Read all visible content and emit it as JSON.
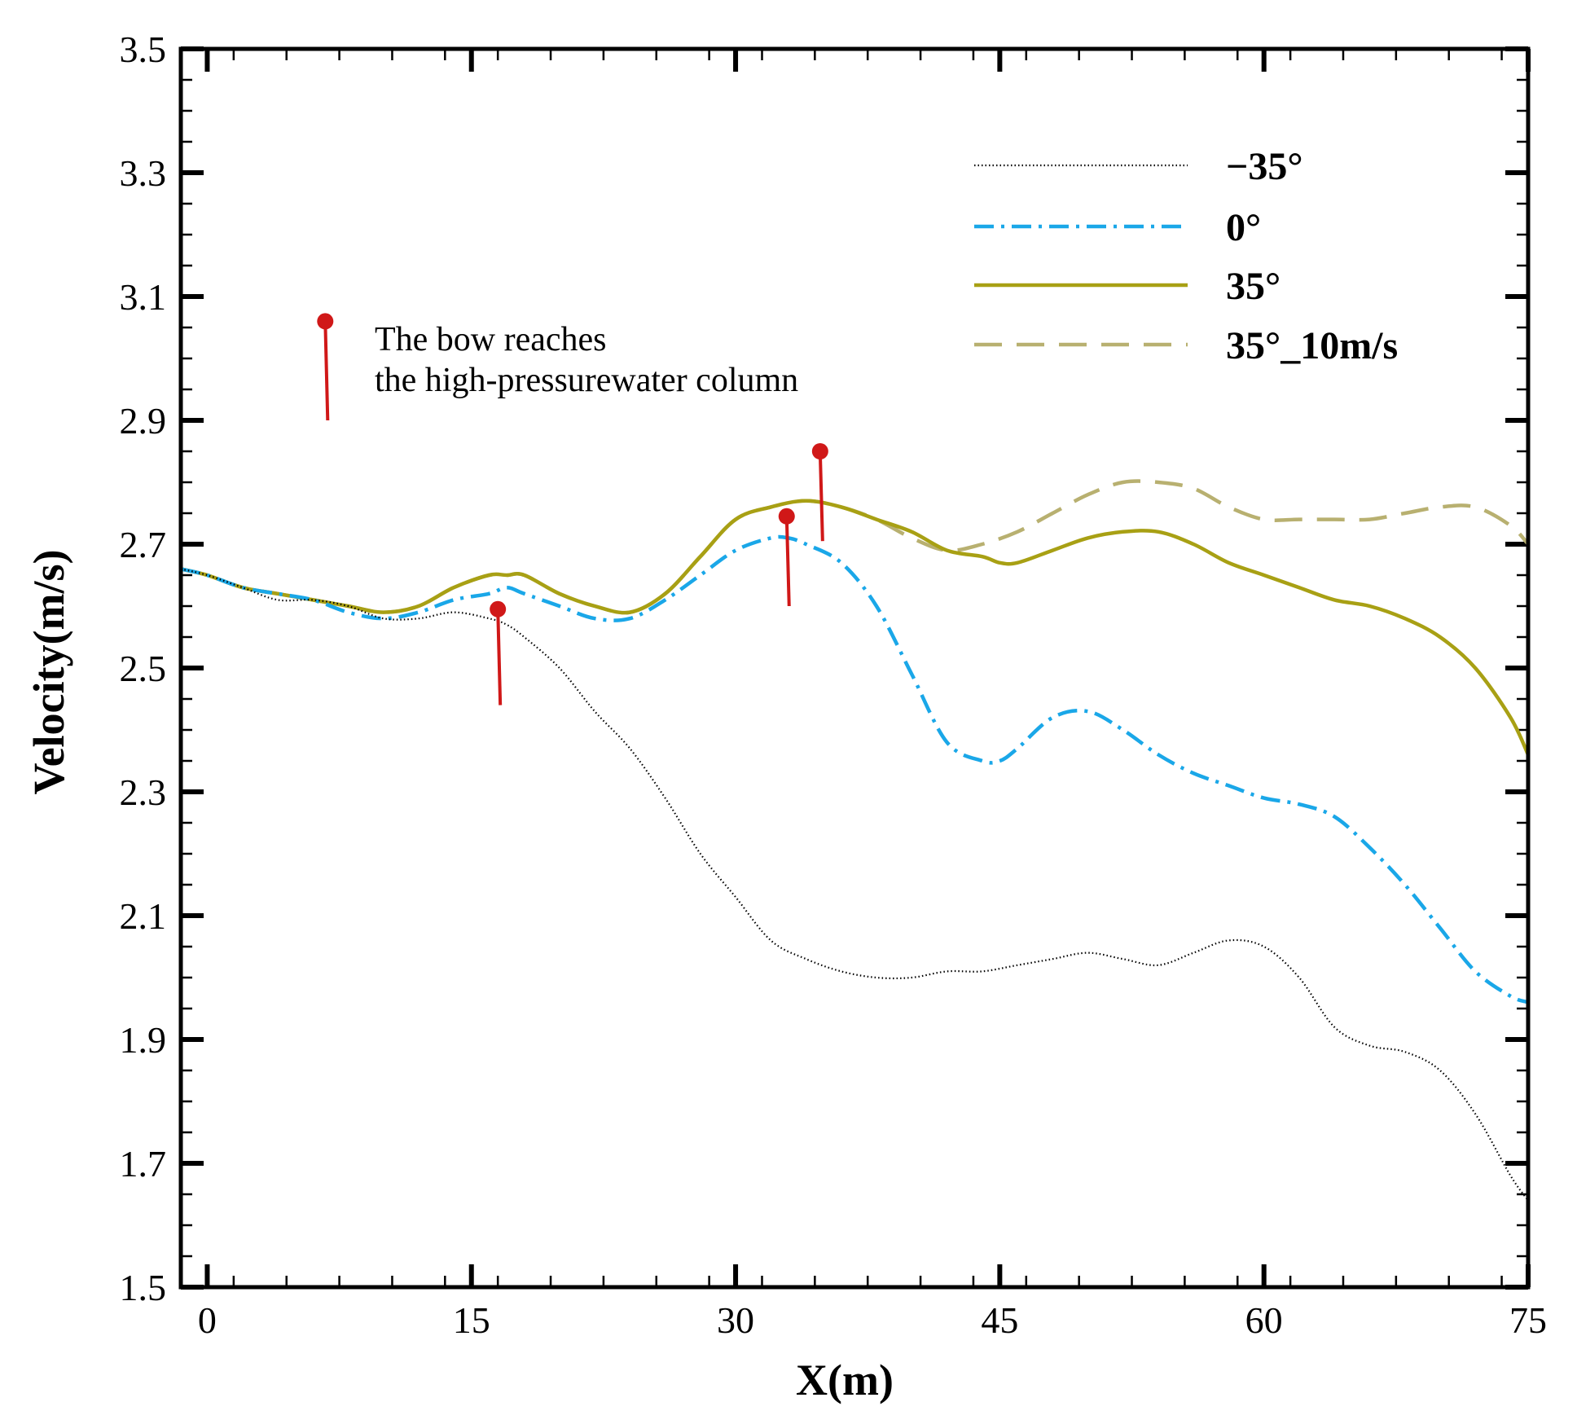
{
  "chart_data": {
    "type": "line",
    "title": "",
    "xlabel": "X(m)",
    "ylabel": "Velocity(m/s)",
    "xlim": [
      -1.5,
      75
    ],
    "ylim": [
      1.5,
      3.5
    ],
    "x_ticks": [
      0,
      15,
      30,
      45,
      60,
      75
    ],
    "y_ticks": [
      1.5,
      1.7,
      1.9,
      2.1,
      2.3,
      2.5,
      2.7,
      2.9,
      3.1,
      3.3,
      3.5
    ],
    "x_tick_labels": [
      "0",
      "15",
      "30",
      "45",
      "60",
      "75"
    ],
    "y_tick_labels": [
      "1.5",
      "1.7",
      "1.9",
      "2.1",
      "2.3",
      "2.5",
      "2.7",
      "2.9",
      "3.1",
      "3.3",
      "3.5"
    ],
    "grid": false,
    "legend_position": "top-right",
    "series": [
      {
        "name": "−35°",
        "color": "#000000",
        "style": "dotted",
        "x": [
          -1.5,
          0,
          2,
          4,
          6,
          8,
          10,
          12,
          14,
          16,
          17,
          18,
          20,
          22,
          24,
          26,
          28,
          30,
          32,
          34,
          36,
          38,
          40,
          42,
          44,
          46,
          48,
          50,
          52,
          54,
          56,
          58,
          60,
          62,
          64,
          66,
          68,
          70,
          72,
          74,
          75
        ],
        "y": [
          2.66,
          2.65,
          2.63,
          2.61,
          2.61,
          2.6,
          2.58,
          2.58,
          2.59,
          2.58,
          2.57,
          2.55,
          2.5,
          2.43,
          2.37,
          2.29,
          2.2,
          2.13,
          2.06,
          2.03,
          2.01,
          2.0,
          2.0,
          2.01,
          2.01,
          2.02,
          2.03,
          2.04,
          2.03,
          2.02,
          2.04,
          2.06,
          2.05,
          2.0,
          1.92,
          1.89,
          1.88,
          1.85,
          1.78,
          1.68,
          1.64
        ]
      },
      {
        "name": "0°",
        "color": "#1aa7e8",
        "style": "dashdot",
        "x": [
          -1.5,
          0,
          2,
          4,
          6,
          8,
          10,
          12,
          14,
          16,
          17,
          18,
          20,
          22,
          24,
          26,
          28,
          30,
          32,
          33,
          34,
          36,
          38,
          40,
          42,
          44,
          45,
          46,
          48,
          50,
          52,
          54,
          56,
          58,
          60,
          62,
          64,
          66,
          68,
          70,
          72,
          74,
          75
        ],
        "y": [
          2.66,
          2.65,
          2.63,
          2.62,
          2.61,
          2.59,
          2.58,
          2.59,
          2.61,
          2.62,
          2.63,
          2.62,
          2.6,
          2.58,
          2.58,
          2.61,
          2.65,
          2.69,
          2.71,
          2.71,
          2.7,
          2.67,
          2.6,
          2.49,
          2.38,
          2.35,
          2.35,
          2.37,
          2.42,
          2.43,
          2.4,
          2.36,
          2.33,
          2.31,
          2.29,
          2.28,
          2.26,
          2.21,
          2.15,
          2.08,
          2.01,
          1.97,
          1.96
        ]
      },
      {
        "name": "35°",
        "color": "#a8a014",
        "style": "solid",
        "x": [
          -1.5,
          0,
          2,
          4,
          6,
          8,
          10,
          12,
          14,
          16,
          17,
          18,
          20,
          22,
          24,
          26,
          28,
          30,
          32,
          34,
          36,
          38,
          40,
          42,
          44,
          45,
          46,
          48,
          50,
          52,
          54,
          56,
          58,
          60,
          62,
          64,
          66,
          68,
          70,
          72,
          74,
          75
        ],
        "y": [
          2.66,
          2.65,
          2.63,
          2.62,
          2.61,
          2.6,
          2.59,
          2.6,
          2.63,
          2.65,
          2.65,
          2.65,
          2.62,
          2.6,
          2.59,
          2.62,
          2.68,
          2.74,
          2.76,
          2.77,
          2.76,
          2.74,
          2.72,
          2.69,
          2.68,
          2.67,
          2.67,
          2.69,
          2.71,
          2.72,
          2.72,
          2.7,
          2.67,
          2.65,
          2.63,
          2.61,
          2.6,
          2.58,
          2.55,
          2.5,
          2.42,
          2.36
        ]
      },
      {
        "name": "35°_10m/s",
        "color": "#b8b070",
        "style": "dashed",
        "x": [
          -1.5,
          0,
          2,
          4,
          6,
          8,
          10,
          12,
          14,
          16,
          17,
          18,
          20,
          22,
          24,
          26,
          28,
          30,
          32,
          34,
          36,
          38,
          40,
          42,
          44,
          46,
          48,
          50,
          52,
          54,
          56,
          58,
          60,
          62,
          64,
          66,
          68,
          70,
          72,
          74,
          75
        ],
        "y": [
          2.66,
          2.65,
          2.63,
          2.62,
          2.61,
          2.6,
          2.59,
          2.6,
          2.63,
          2.65,
          2.65,
          2.65,
          2.62,
          2.6,
          2.59,
          2.62,
          2.68,
          2.74,
          2.76,
          2.77,
          2.76,
          2.74,
          2.71,
          2.69,
          2.7,
          2.72,
          2.75,
          2.78,
          2.8,
          2.8,
          2.79,
          2.76,
          2.74,
          2.74,
          2.74,
          2.74,
          2.75,
          2.76,
          2.76,
          2.73,
          2.7
        ]
      }
    ],
    "annotation": {
      "text_line1": "The bow reaches",
      "text_line2": "the high-pressurewater column",
      "color": "#d01818",
      "marker_x": 6.7,
      "marker_y_top": 3.06,
      "marker_y_bottom": 2.9
    },
    "pins": [
      {
        "x": 16.5,
        "y_top": 2.595,
        "y_bottom": 2.44
      },
      {
        "x": 32.9,
        "y_top": 2.745,
        "y_bottom": 2.6
      },
      {
        "x": 34.8,
        "y_top": 2.85,
        "y_bottom": 2.705
      }
    ]
  }
}
